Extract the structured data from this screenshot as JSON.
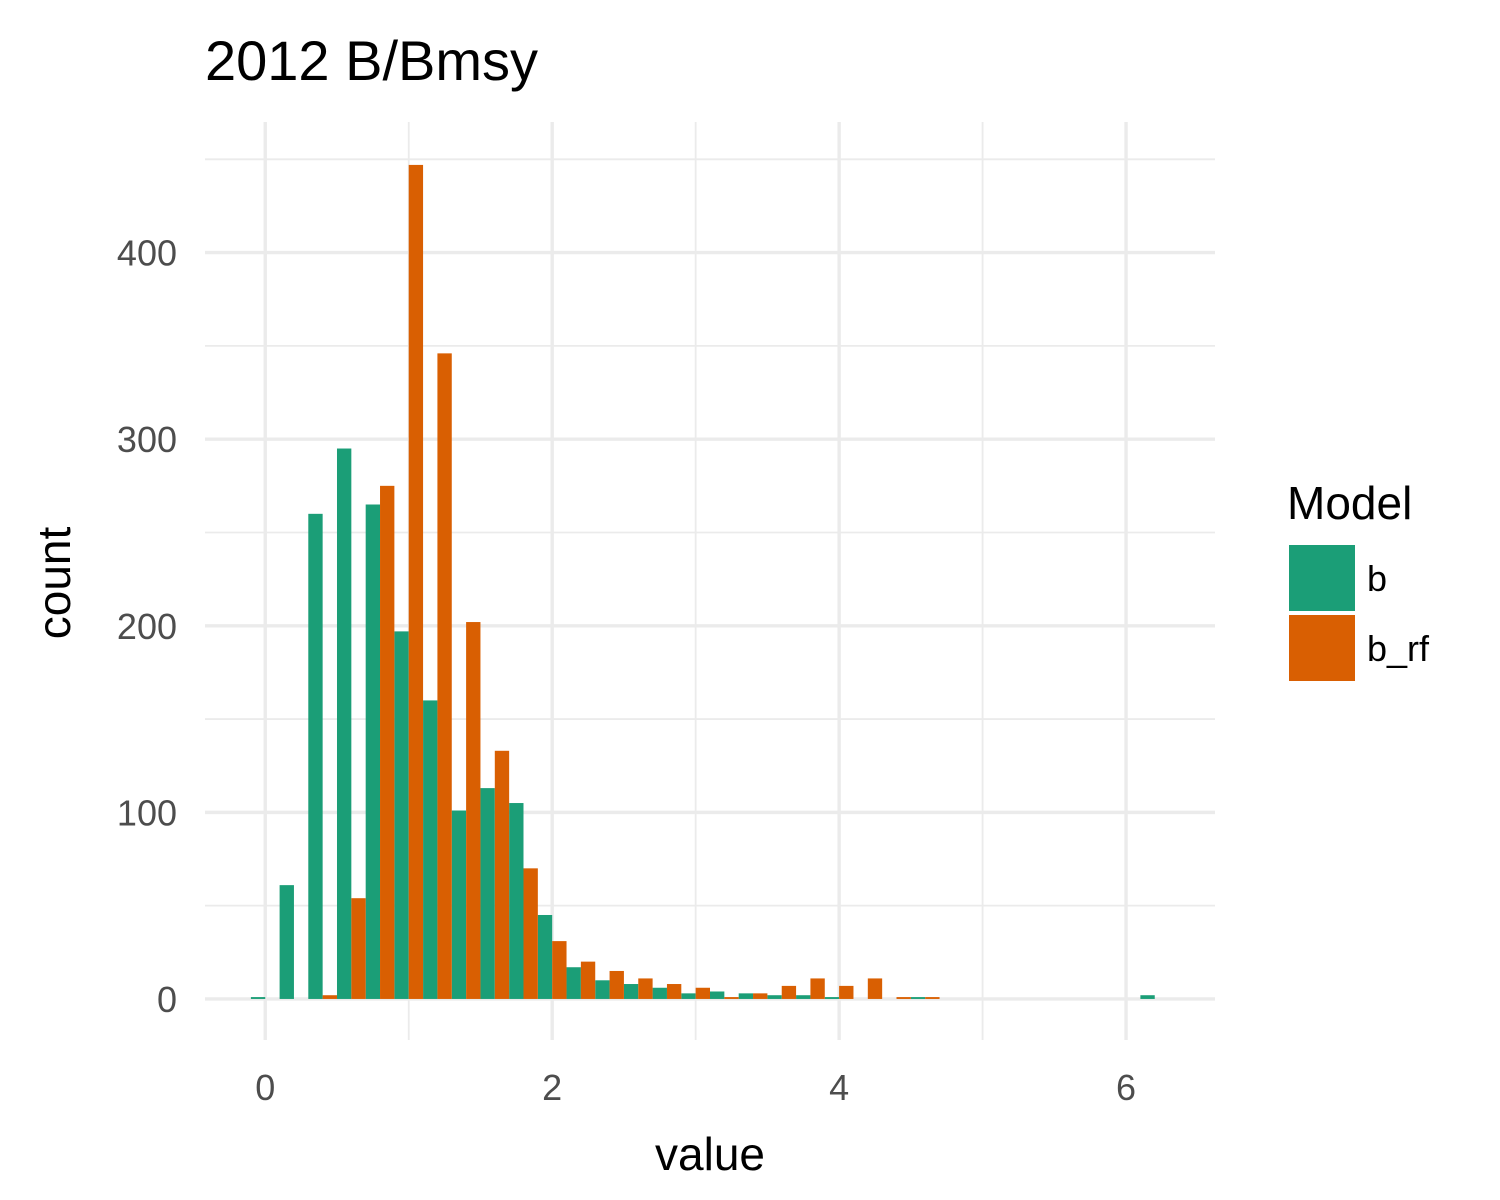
{
  "chart_data": {
    "type": "bar",
    "title": "2012 B/Bmsy",
    "xlabel": "value",
    "ylabel": "count",
    "xlim": [
      -0.42,
      6.62
    ],
    "ylim": [
      -22,
      470
    ],
    "x_ticks": [
      0,
      2,
      4,
      6
    ],
    "x_minor_ticks": [
      1,
      3,
      5
    ],
    "y_ticks": [
      0,
      100,
      200,
      300,
      400
    ],
    "y_minor_ticks": [
      50,
      150,
      250,
      350,
      450
    ],
    "grid": true,
    "legend": {
      "title": "Model",
      "position": "right"
    },
    "bin_width": 0.2,
    "bin_centers": [
      0.0,
      0.2,
      0.4,
      0.6,
      0.8,
      1.0,
      1.2,
      1.4,
      1.6,
      1.8,
      2.0,
      2.2,
      2.4,
      2.6,
      2.8,
      3.0,
      3.2,
      3.4,
      3.6,
      3.8,
      4.0,
      4.2,
      4.4,
      4.6,
      4.8,
      5.0,
      5.2,
      5.4,
      5.6,
      5.8,
      6.0,
      6.2
    ],
    "series": [
      {
        "name": "b",
        "color": "#1b9e77",
        "values": [
          1,
          61,
          260,
          295,
          265,
          197,
          160,
          101,
          113,
          105,
          45,
          17,
          10,
          8,
          6,
          3,
          4,
          3,
          2,
          2,
          1,
          0,
          0,
          1,
          0,
          0,
          0,
          0,
          0,
          0,
          0,
          2
        ]
      },
      {
        "name": "b_rf",
        "color": "#d95f02",
        "values": [
          0,
          0,
          2,
          54,
          275,
          447,
          346,
          202,
          133,
          70,
          31,
          20,
          15,
          11,
          8,
          6,
          1,
          3,
          7,
          11,
          7,
          11,
          1,
          1,
          0,
          0,
          0,
          0,
          0,
          0,
          0,
          0
        ]
      }
    ]
  }
}
